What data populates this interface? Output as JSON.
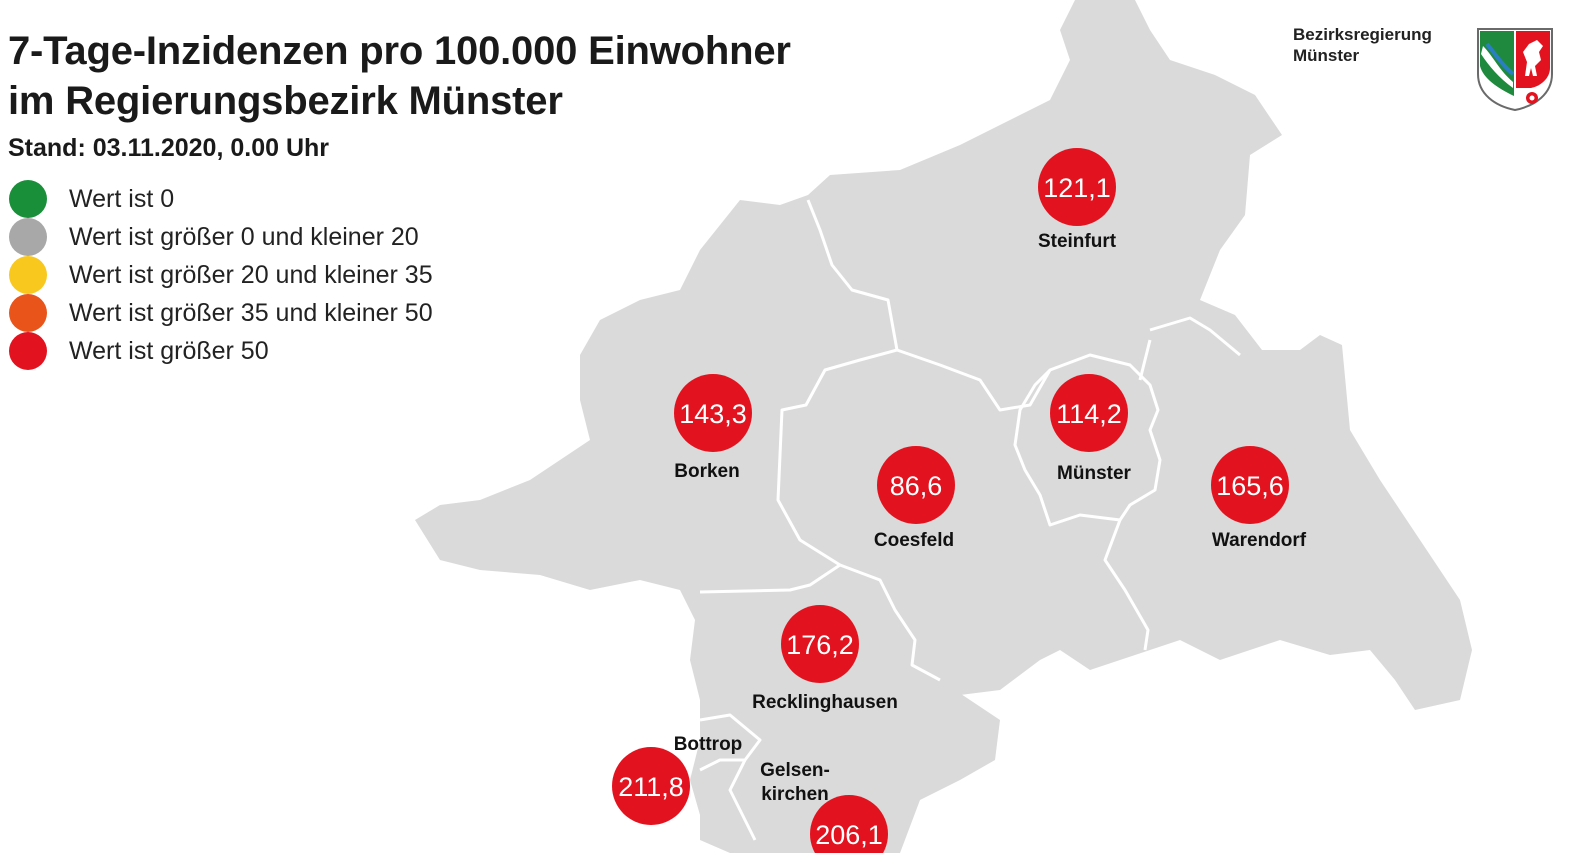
{
  "title": {
    "line1": "7-Tage-Inzidenzen pro 100.000 Einwohner",
    "line2": "im Regierungsbezirk Münster"
  },
  "subtitle": "Stand: 03.11.2020, 0.00 Uhr",
  "legend": [
    {
      "label": "Wert ist 0",
      "color": "#1a8f3a"
    },
    {
      "label": "Wert ist größer 0 und kleiner 20",
      "color": "#a8a8a8"
    },
    {
      "label": "Wert ist größer 20 und kleiner 35",
      "color": "#f8c81e"
    },
    {
      "label": "Wert ist größer 35 und kleiner 50",
      "color": "#e8541a"
    },
    {
      "label": "Wert ist größer 50",
      "color": "#e2131f"
    }
  ],
  "authority": {
    "line1": "Bezirksregierung",
    "line2": "Münster"
  },
  "colors": {
    "land": "#dadada",
    "border": "#ffffff",
    "marker": "#e2131f"
  },
  "regions": [
    {
      "id": "steinfurt",
      "name": "Steinfurt",
      "value": "121,1"
    },
    {
      "id": "borken",
      "name": "Borken",
      "value": "143,3"
    },
    {
      "id": "muenster",
      "name": "Münster",
      "value": "114,2"
    },
    {
      "id": "coesfeld",
      "name": "Coesfeld",
      "value": "86,6"
    },
    {
      "id": "warendorf",
      "name": "Warendorf",
      "value": "165,6"
    },
    {
      "id": "recklinghausen",
      "name": "Recklinghausen",
      "value": "176,2"
    },
    {
      "id": "bottrop",
      "name": "Bottrop",
      "value": "211,8"
    },
    {
      "id": "gelsenkirchen",
      "name": "Gelsen-",
      "name2": "kirchen",
      "value": "206,1"
    }
  ]
}
